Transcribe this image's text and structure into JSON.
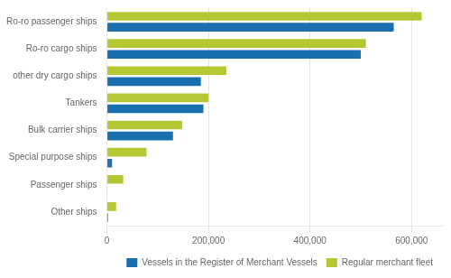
{
  "chart_data": {
    "type": "bar",
    "orientation": "horizontal",
    "categories": [
      "Ro-ro passenger ships",
      "Ro-ro cargo ships",
      "other dry cargo ships",
      "Tankers",
      "Bulk carrier ships",
      "Special purpose ships",
      "Passenger ships",
      "Other ships"
    ],
    "series": [
      {
        "name": "Vessels in the Register of Merchant Vessels",
        "color": "#1a6faf",
        "values": [
          565000,
          500000,
          185000,
          190000,
          130000,
          10000,
          1000,
          2000
        ]
      },
      {
        "name": "Regular merchant fleet",
        "color": "#b5c833",
        "values": [
          620000,
          510000,
          235000,
          200000,
          148000,
          78000,
          32000,
          18000
        ]
      }
    ],
    "xlim": [
      0,
      660000
    ],
    "xticks": [
      0,
      {
        "value": 200000,
        "label": "200,000"
      },
      {
        "value": 400000,
        "label": "400,000"
      },
      {
        "value": 600000,
        "label": "600,000"
      }
    ],
    "grid": true,
    "legend": "lower right"
  }
}
